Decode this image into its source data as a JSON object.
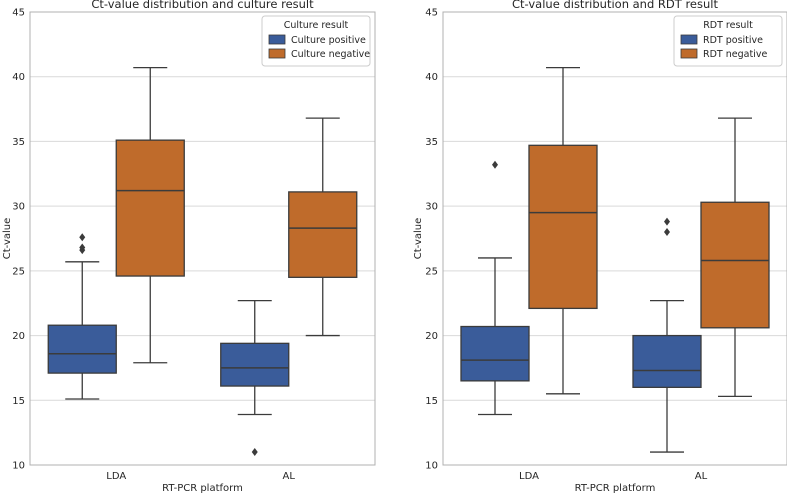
{
  "chart_data": [
    {
      "type": "box",
      "title": "Ct-value distribution and culture result",
      "xlabel": "RT-PCR platform",
      "ylabel": "",
      "ylim": [
        10,
        45
      ],
      "yticks": [
        10,
        15,
        20,
        25,
        30,
        35,
        40,
        45
      ],
      "categories": [
        "LDA",
        "AL"
      ],
      "grid": true,
      "legend": {
        "title": "Culture result",
        "placement": "top-right"
      },
      "series": [
        {
          "name": "Culture positive",
          "color": "#3a5c9a",
          "boxes": [
            {
              "category": "LDA",
              "whisker_low": 15.1,
              "q1": 17.1,
              "median": 18.6,
              "q3": 20.8,
              "whisker_high": 25.7,
              "outliers": [
                26.6,
                26.8,
                27.6
              ]
            },
            {
              "category": "AL",
              "whisker_low": 13.9,
              "q1": 16.1,
              "median": 17.5,
              "q3": 19.4,
              "whisker_high": 22.7,
              "outliers": [
                11.0
              ]
            }
          ]
        },
        {
          "name": "Culture negative",
          "color": "#bf6b2b",
          "boxes": [
            {
              "category": "LDA",
              "whisker_low": 17.9,
              "q1": 24.6,
              "median": 31.2,
              "q3": 35.1,
              "whisker_high": 40.7,
              "outliers": []
            },
            {
              "category": "AL",
              "whisker_low": 20.0,
              "q1": 24.5,
              "median": 28.3,
              "q3": 31.1,
              "whisker_high": 36.8,
              "outliers": []
            }
          ]
        }
      ]
    },
    {
      "type": "box",
      "title": "Ct-value distribution and RDT result",
      "xlabel": "RT-PCR platform",
      "ylabel": "Ct-value",
      "ylim": [
        10,
        45
      ],
      "yticks": [
        10,
        15,
        20,
        25,
        30,
        35,
        40,
        45
      ],
      "categories": [
        "LDA",
        "AL"
      ],
      "grid": true,
      "legend": {
        "title": "RDT result",
        "placement": "top-right"
      },
      "series": [
        {
          "name": "RDT positive",
          "color": "#3a5c9a",
          "boxes": [
            {
              "category": "LDA",
              "whisker_low": 13.9,
              "q1": 16.5,
              "median": 18.1,
              "q3": 20.7,
              "whisker_high": 26.0,
              "outliers": [
                33.2
              ]
            },
            {
              "category": "AL",
              "whisker_low": 11.0,
              "q1": 16.0,
              "median": 17.3,
              "q3": 20.0,
              "whisker_high": 22.7,
              "outliers": [
                28.0,
                28.8
              ]
            }
          ]
        },
        {
          "name": "RDT negative",
          "color": "#bf6b2b",
          "boxes": [
            {
              "category": "LDA",
              "whisker_low": 15.5,
              "q1": 22.1,
              "median": 29.5,
              "q3": 34.7,
              "whisker_high": 40.7,
              "outliers": []
            },
            {
              "category": "AL",
              "whisker_low": 15.3,
              "q1": 20.6,
              "median": 25.8,
              "q3": 30.3,
              "whisker_high": 36.8,
              "outliers": []
            }
          ]
        }
      ]
    }
  ],
  "left_ylabel_visible": "Ct-value"
}
